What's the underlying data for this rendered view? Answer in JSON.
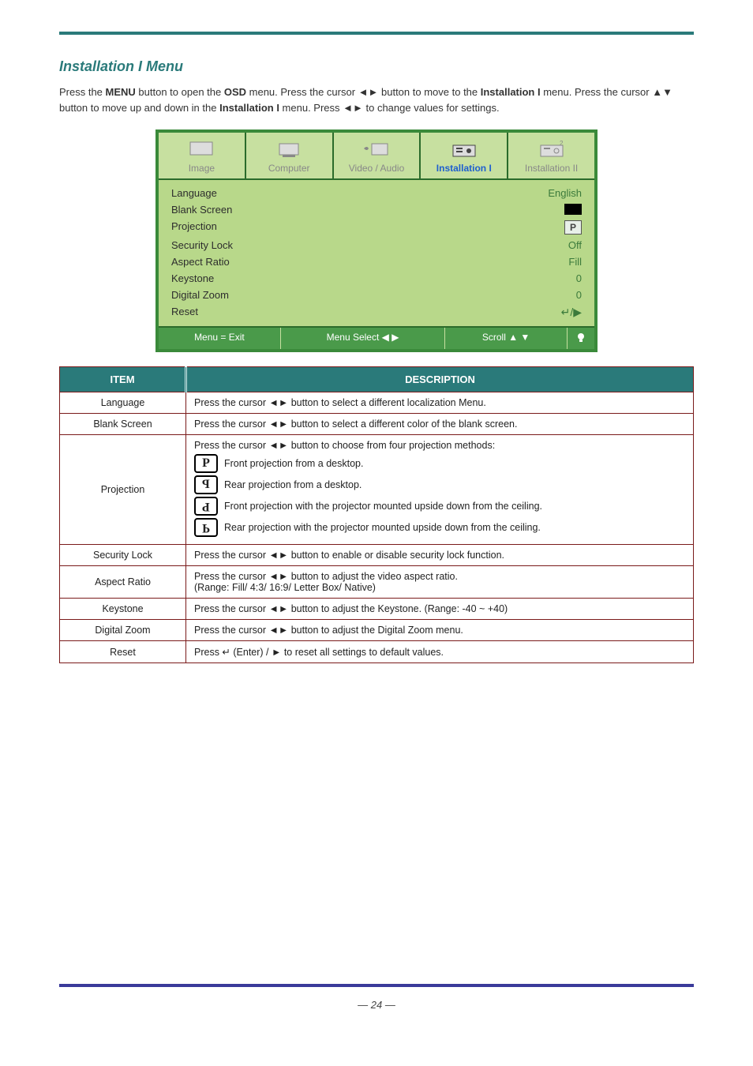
{
  "heading": "Installation I Menu",
  "instructions": {
    "line1_pre": "Press the ",
    "menu_btn": "MENU",
    "line1_post": " button to open the ",
    "osd_word": "OSD",
    "line1_end": " menu. Press the cursor ",
    "lr": "◄►",
    "line1_tail": " button to move to the ",
    "inst1_bold": "Installation I",
    "line2_pre": " menu. Press the cursor ",
    "ud": "▲▼",
    "line2_mid": " button to move up and down in the ",
    "line2_tail": " to change values for settings."
  },
  "osd": {
    "tabs": [
      {
        "label": "Image",
        "active": false
      },
      {
        "label": "Computer",
        "active": false
      },
      {
        "label": "Video / Audio",
        "active": false
      },
      {
        "label": "Installation I",
        "active": true
      },
      {
        "label": "Installation II",
        "active": false
      }
    ],
    "rows": [
      {
        "label": "Language",
        "value": "English",
        "type": "text"
      },
      {
        "label": "Blank Screen",
        "value": "",
        "type": "swatch"
      },
      {
        "label": "Projection",
        "value": "P",
        "type": "proj"
      },
      {
        "label": "Security Lock",
        "value": "Off",
        "type": "text"
      },
      {
        "label": "Aspect Ratio",
        "value": "Fill",
        "type": "text"
      },
      {
        "label": "Keystone",
        "value": "0",
        "type": "text"
      },
      {
        "label": "Digital Zoom",
        "value": "0",
        "type": "text"
      },
      {
        "label": "Reset",
        "value": "↵/▶",
        "type": "enter"
      }
    ],
    "footer": {
      "exit": "Menu = Exit",
      "select": "Menu Select ◀ ▶",
      "scroll": "Scroll ▲ ▼"
    }
  },
  "table": {
    "head_item": "ITEM",
    "head_desc": "DESCRIPTION",
    "rows": [
      {
        "item": "Language",
        "desc_pre": "Press the cursor ",
        "lr": "◄►",
        "desc_post": " button to select a different localization Menu."
      },
      {
        "item": "Blank Screen",
        "desc_pre": "Press the cursor ",
        "lr": "◄►",
        "desc_post": " button to select a different color of the blank screen."
      },
      {
        "item": "Projection",
        "desc_pre": "Press the cursor ",
        "lr": "◄►",
        "desc_post": " button to choose from four projection methods:",
        "options": [
          {
            "glyph": "P",
            "cls": "",
            "text": "Front projection from a desktop."
          },
          {
            "glyph": "P",
            "cls": "flip-h",
            "text": "Rear projection from a desktop."
          },
          {
            "glyph": "P",
            "cls": "flip-hv",
            "text": "Front projection with the projector mounted upside down from the ceiling."
          },
          {
            "glyph": "P",
            "cls": "flip-v",
            "text": "Rear projection with the projector mounted upside down from the ceiling."
          }
        ]
      },
      {
        "item": "Security Lock",
        "desc_pre": "Press the cursor ",
        "lr": "◄►",
        "desc_post": " button to enable or disable security lock function."
      },
      {
        "item": "Aspect Ratio",
        "desc_pre": "Press the cursor ",
        "lr": "◄►",
        "desc_post": " button to adjust the video aspect ratio.",
        "range": "(Range: Fill/ 4:3/ 16:9/ Letter Box/ Native)"
      },
      {
        "item": "Keystone",
        "desc_pre": "Press the cursor ",
        "lr": "◄►",
        "desc_post": " button to adjust the Keystone. (Range: -40 ~ +40)"
      },
      {
        "item": "Digital Zoom",
        "desc_pre": "Press the cursor ",
        "lr": "◄►",
        "desc_post": " button to adjust the Digital Zoom menu."
      },
      {
        "item": "Reset",
        "desc_full": "Press ↵ (Enter) / ► to reset all settings to default values."
      }
    ]
  },
  "page_num": "— 24 —"
}
